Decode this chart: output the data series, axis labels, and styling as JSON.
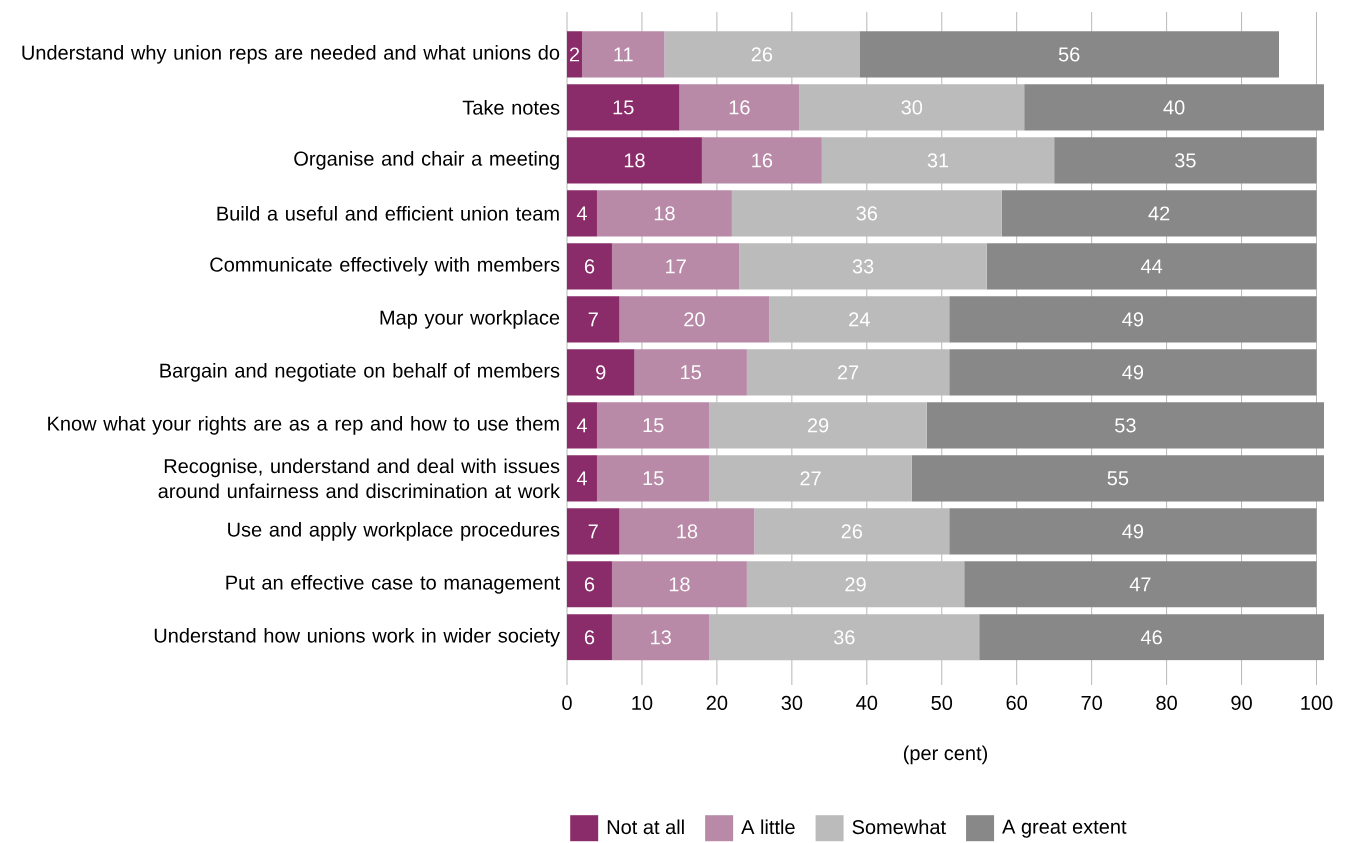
{
  "chart_data": {
    "type": "bar",
    "orientation": "horizontal",
    "stacked": true,
    "categories": [
      "Understand why union reps are needed and what unions do",
      "Take notes",
      "Organise and chair a meeting",
      "Build a useful and efficient union team",
      "Communicate effectively with members",
      "Map your workplace",
      "Bargain and negotiate on behalf of members",
      "Know what your rights are as a rep and how to use them",
      "Recognise, understand and deal with issues around unfairness and discrimination at work",
      "Use and apply workplace procedures",
      "Put an effective case to management",
      "Understand how unions work in wider society"
    ],
    "series": [
      {
        "name": "Not at all",
        "color": "#8b2c6a",
        "values": [
          2,
          15,
          18,
          4,
          6,
          7,
          9,
          4,
          4,
          7,
          6,
          6
        ]
      },
      {
        "name": "A little",
        "color": "#b88aa7",
        "values": [
          11,
          16,
          16,
          18,
          17,
          20,
          15,
          15,
          15,
          18,
          18,
          13
        ]
      },
      {
        "name": "Somewhat",
        "color": "#bbbbbb",
        "values": [
          26,
          30,
          31,
          36,
          33,
          24,
          27,
          29,
          27,
          26,
          29,
          36
        ]
      },
      {
        "name": "A great extent",
        "color": "#888888",
        "values": [
          56,
          40,
          35,
          42,
          44,
          49,
          49,
          53,
          55,
          49,
          47,
          46
        ]
      }
    ],
    "xlim": [
      0,
      101
    ],
    "xticks": [
      0,
      10,
      20,
      30,
      40,
      50,
      60,
      70,
      80,
      90,
      100
    ],
    "xlabel": "(per cent)",
    "grid": "x",
    "legend": "bottom",
    "data_labels": true
  }
}
